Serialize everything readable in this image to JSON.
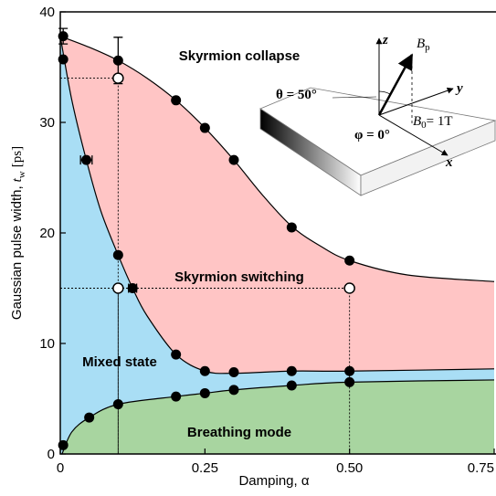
{
  "chart_data": {
    "type": "line",
    "xlabel": "Damping, α",
    "ylabel": {
      "text": "Gaussian pulse width,",
      "var": "t",
      "sub": "w",
      "unit": "[ps]"
    },
    "xlim": [
      0,
      0.75
    ],
    "ylim": [
      0,
      40
    ],
    "xticks": [
      0,
      0.25,
      {
        "value": 0.5,
        "label": "0.50"
      },
      0.75
    ],
    "yticks": [
      0,
      10,
      20,
      30,
      40
    ],
    "curves": [
      {
        "x": [
          0,
          0.05,
          0.1,
          0.15,
          0.2,
          0.25,
          0.3,
          0.35,
          0.4,
          0.45,
          0.5,
          0.6,
          0.75
        ],
        "y": [
          37.8,
          36.8,
          35.6,
          34,
          32,
          29.5,
          26.6,
          23.4,
          20.6,
          18.8,
          17.5,
          16.2,
          15.6
        ]
      },
      {
        "x": [
          0,
          0.02,
          0.045,
          0.07,
          0.1,
          0.125,
          0.15,
          0.2,
          0.25,
          0.3,
          0.4,
          0.5,
          0.75
        ],
        "y": [
          37.8,
          32,
          26.6,
          22,
          18,
          15,
          12.5,
          9,
          7.5,
          7.3,
          7.5,
          7.5,
          7.7
        ]
      },
      {
        "x": [
          0.003,
          0.02,
          0.05,
          0.1,
          0.2,
          0.25,
          0.3,
          0.4,
          0.5,
          0.75
        ],
        "y": [
          0,
          2,
          3.3,
          4.5,
          5.2,
          5.5,
          5.8,
          6.2,
          6.5,
          6.7
        ]
      }
    ],
    "region_colors": {
      "mixed": "#a9def5",
      "switching": "#ffc5c5",
      "breathing": "#a8d5a0"
    },
    "points": {
      "x": [
        0.005,
        0.005,
        0.1,
        0.2,
        0.25,
        0.3,
        0.4,
        0.5,
        0.045,
        0.1,
        0.125,
        0.2,
        0.25,
        0.3,
        0.4,
        0.5,
        0.005,
        0.05,
        0.1,
        0.2,
        0.25,
        0.3,
        0.4,
        0.5
      ],
      "y": [
        37.8,
        35.7,
        35.6,
        32,
        29.5,
        26.6,
        20.5,
        17.5,
        26.6,
        18,
        15,
        9,
        7.5,
        7.4,
        7.5,
        7.5,
        0.8,
        3.3,
        4.5,
        5.2,
        5.5,
        5.8,
        6.2,
        6.5
      ]
    },
    "error_bars": [
      {
        "x": 0.005,
        "y": 37.8,
        "yerr": 0.7
      },
      {
        "x": 0.1,
        "y": 35.6,
        "yerr": 2.1
      },
      {
        "x": 0.045,
        "y": 26.6,
        "xerr": 0.01
      },
      {
        "x": 0.125,
        "y": 15,
        "xerr": 0.007
      }
    ],
    "open_points": {
      "x": [
        0.1,
        0.1,
        0.5
      ],
      "y": [
        34,
        15,
        15
      ]
    },
    "region_labels": [
      "Skyrmion collapse",
      "Skyrmion switching",
      "Mixed state",
      "Breathing mode"
    ],
    "inset": {
      "z_axis": "z",
      "y_axis": "y",
      "x_axis": "x",
      "field": {
        "symbol": "B",
        "sub": "p"
      },
      "theta": "θ = 50°",
      "phi": "φ = 0°",
      "b0": {
        "symbol": "B",
        "sub": "0",
        "rest": "= 1T"
      }
    }
  }
}
